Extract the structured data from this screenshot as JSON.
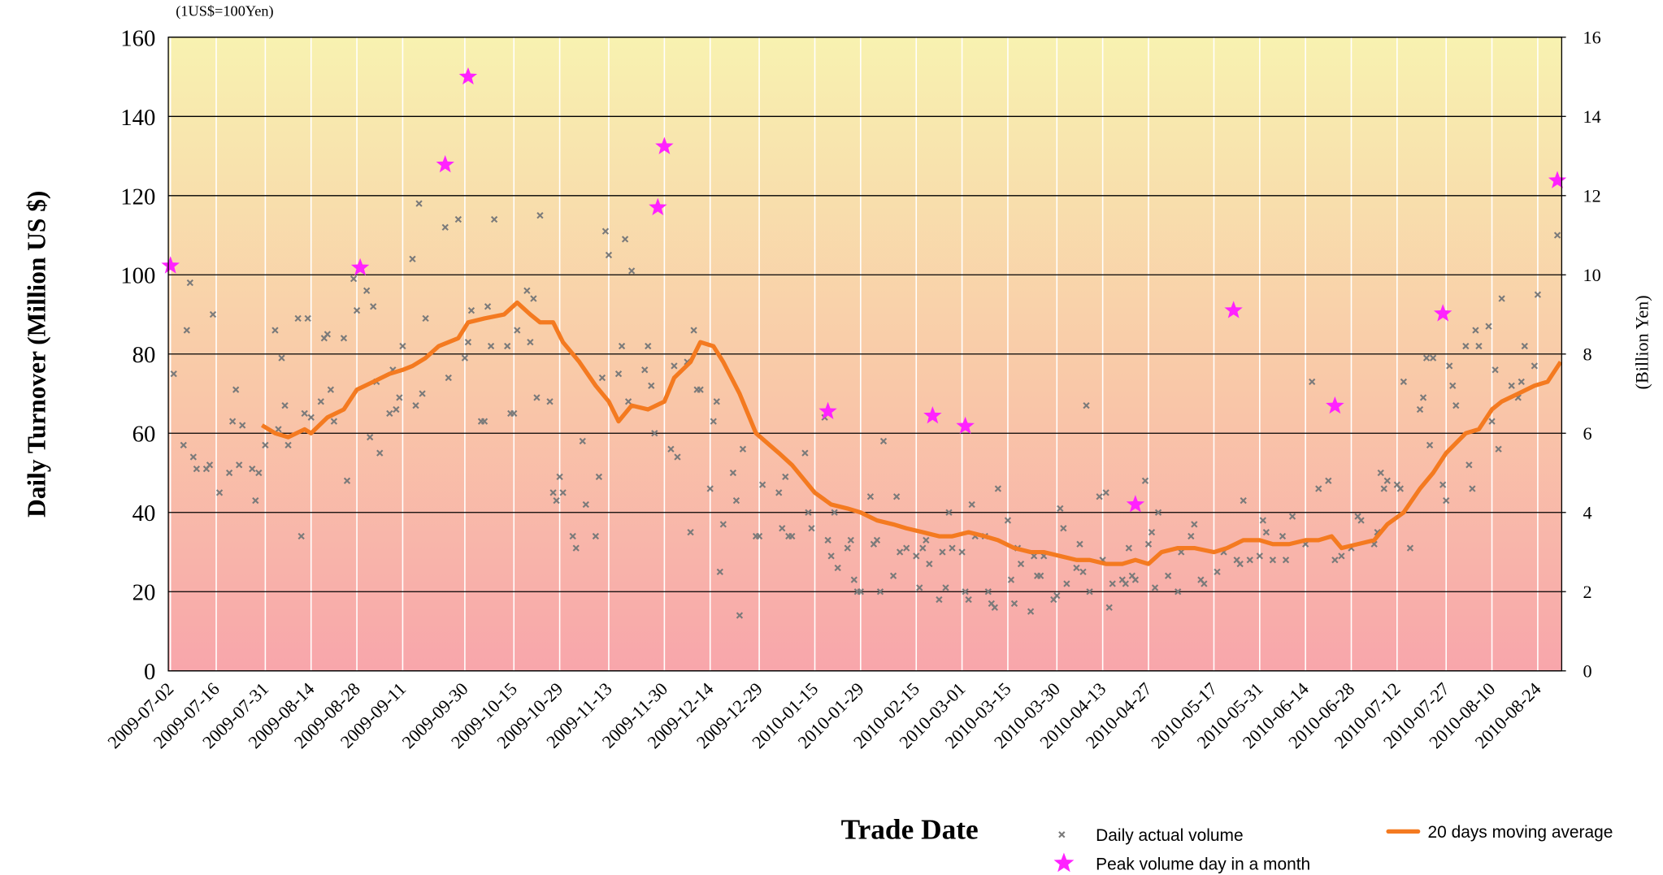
{
  "chart_data": {
    "type": "scatter",
    "subtitle": "(1US$=100Yen)",
    "y_label": "Daily Turnover (Million US $)",
    "y2_label": "(Billion Yen)",
    "x_label": "Trade Date",
    "xlim": [
      "2009-07-02",
      "2010-08-31"
    ],
    "xticks": [
      "2009-07-02",
      "2009-07-16",
      "2009-07-31",
      "2009-08-14",
      "2009-08-28",
      "2009-09-11",
      "2009-09-30",
      "2009-10-15",
      "2009-10-29",
      "2009-11-13",
      "2009-11-30",
      "2009-12-14",
      "2009-12-29",
      "2010-01-15",
      "2010-01-29",
      "2010-02-15",
      "2010-03-01",
      "2010-03-15",
      "2010-03-30",
      "2010-04-13",
      "2010-04-27",
      "2010-05-17",
      "2010-05-31",
      "2010-06-14",
      "2010-06-28",
      "2010-07-12",
      "2010-07-27",
      "2010-08-10",
      "2010-08-24"
    ],
    "ylim": [
      0,
      160
    ],
    "yticks": [
      0,
      20,
      40,
      60,
      80,
      100,
      120,
      140,
      160
    ],
    "y2lim": [
      0,
      16
    ],
    "y2ticks": [
      0,
      2,
      4,
      6,
      8,
      10,
      12,
      14,
      16
    ],
    "grid": true,
    "series": [
      {
        "name": "Daily actual volume",
        "type": "scatter",
        "marker": "x",
        "color": "#7a7a7a",
        "x": [
          "2009-07-03",
          "2009-07-06",
          "2009-07-07",
          "2009-07-08",
          "2009-07-09",
          "2009-07-10",
          "2009-07-13",
          "2009-07-14",
          "2009-07-15",
          "2009-07-17",
          "2009-07-20",
          "2009-07-21",
          "2009-07-22",
          "2009-07-23",
          "2009-07-24",
          "2009-07-27",
          "2009-07-28",
          "2009-07-29",
          "2009-07-31",
          "2009-08-03",
          "2009-08-04",
          "2009-08-05",
          "2009-08-06",
          "2009-08-07",
          "2009-08-10",
          "2009-08-11",
          "2009-08-12",
          "2009-08-13",
          "2009-08-14",
          "2009-08-17",
          "2009-08-18",
          "2009-08-19",
          "2009-08-20",
          "2009-08-21",
          "2009-08-24",
          "2009-08-25",
          "2009-08-27",
          "2009-08-28",
          "2009-08-31",
          "2009-09-01",
          "2009-09-02",
          "2009-09-03",
          "2009-09-04",
          "2009-09-07",
          "2009-09-08",
          "2009-09-09",
          "2009-09-10",
          "2009-09-11",
          "2009-09-14",
          "2009-09-15",
          "2009-09-16",
          "2009-09-17",
          "2009-09-18",
          "2009-09-24",
          "2009-09-25",
          "2009-09-28",
          "2009-09-30",
          "2009-10-01",
          "2009-10-02",
          "2009-10-05",
          "2009-10-06",
          "2009-10-07",
          "2009-10-08",
          "2009-10-09",
          "2009-10-13",
          "2009-10-14",
          "2009-10-15",
          "2009-10-16",
          "2009-10-19",
          "2009-10-20",
          "2009-10-21",
          "2009-10-22",
          "2009-10-23",
          "2009-10-26",
          "2009-10-27",
          "2009-10-28",
          "2009-10-29",
          "2009-10-30",
          "2009-11-02",
          "2009-11-03",
          "2009-11-05",
          "2009-11-06",
          "2009-11-09",
          "2009-11-10",
          "2009-11-11",
          "2009-11-12",
          "2009-11-13",
          "2009-11-16",
          "2009-11-17",
          "2009-11-18",
          "2009-11-19",
          "2009-11-20",
          "2009-11-24",
          "2009-11-25",
          "2009-11-26",
          "2009-11-27",
          "2009-12-02",
          "2009-12-03",
          "2009-12-04",
          "2009-12-07",
          "2009-12-08",
          "2009-12-09",
          "2009-12-10",
          "2009-12-11",
          "2009-12-14",
          "2009-12-15",
          "2009-12-16",
          "2009-12-17",
          "2009-12-18",
          "2009-12-21",
          "2009-12-22",
          "2009-12-23",
          "2009-12-24",
          "2009-12-28",
          "2009-12-29",
          "2009-12-30",
          "2010-01-04",
          "2010-01-05",
          "2010-01-06",
          "2010-01-07",
          "2010-01-08",
          "2010-01-12",
          "2010-01-13",
          "2010-01-14",
          "2010-01-18",
          "2010-01-19",
          "2010-01-20",
          "2010-01-21",
          "2010-01-22",
          "2010-01-25",
          "2010-01-26",
          "2010-01-27",
          "2010-01-28",
          "2010-01-29",
          "2010-02-01",
          "2010-02-02",
          "2010-02-03",
          "2010-02-04",
          "2010-02-05",
          "2010-02-08",
          "2010-02-09",
          "2010-02-10",
          "2010-02-12",
          "2010-02-15",
          "2010-02-16",
          "2010-02-17",
          "2010-02-18",
          "2010-02-19",
          "2010-02-22",
          "2010-02-23",
          "2010-02-24",
          "2010-02-25",
          "2010-02-26",
          "2010-03-01",
          "2010-03-02",
          "2010-03-03",
          "2010-03-04",
          "2010-03-05",
          "2010-03-08",
          "2010-03-09",
          "2010-03-10",
          "2010-03-11",
          "2010-03-12",
          "2010-03-15",
          "2010-03-16",
          "2010-03-17",
          "2010-03-18",
          "2010-03-19",
          "2010-03-22",
          "2010-03-23",
          "2010-03-24",
          "2010-03-25",
          "2010-03-26",
          "2010-03-29",
          "2010-03-30",
          "2010-03-31",
          "2010-04-01",
          "2010-04-02",
          "2010-04-05",
          "2010-04-06",
          "2010-04-07",
          "2010-04-08",
          "2010-04-09",
          "2010-04-12",
          "2010-04-13",
          "2010-04-14",
          "2010-04-15",
          "2010-04-16",
          "2010-04-19",
          "2010-04-20",
          "2010-04-21",
          "2010-04-22",
          "2010-04-23",
          "2010-04-26",
          "2010-04-27",
          "2010-04-28",
          "2010-04-29",
          "2010-04-30",
          "2010-05-03",
          "2010-05-06",
          "2010-05-07",
          "2010-05-10",
          "2010-05-11",
          "2010-05-13",
          "2010-05-14",
          "2010-05-18",
          "2010-05-20",
          "2010-05-24",
          "2010-05-25",
          "2010-05-26",
          "2010-05-28",
          "2010-05-31",
          "2010-06-01",
          "2010-06-02",
          "2010-06-04",
          "2010-06-07",
          "2010-06-08",
          "2010-06-10",
          "2010-06-14",
          "2010-06-16",
          "2010-06-18",
          "2010-06-21",
          "2010-06-23",
          "2010-06-25",
          "2010-06-28",
          "2010-06-30",
          "2010-07-01",
          "2010-07-05",
          "2010-07-06",
          "2010-07-07",
          "2010-07-08",
          "2010-07-09",
          "2010-07-12",
          "2010-07-13",
          "2010-07-14",
          "2010-07-16",
          "2010-07-19",
          "2010-07-20",
          "2010-07-21",
          "2010-07-22",
          "2010-07-23",
          "2010-07-26",
          "2010-07-27",
          "2010-07-28",
          "2010-07-29",
          "2010-07-30",
          "2010-08-02",
          "2010-08-03",
          "2010-08-04",
          "2010-08-05",
          "2010-08-06",
          "2010-08-09",
          "2010-08-10",
          "2010-08-11",
          "2010-08-12",
          "2010-08-13",
          "2010-08-16",
          "2010-08-18",
          "2010-08-19",
          "2010-08-20",
          "2010-08-23",
          "2010-08-24",
          "2010-08-30"
        ],
        "values": [
          75,
          57,
          86,
          98,
          54,
          51,
          51,
          52,
          90,
          45,
          50,
          63,
          71,
          52,
          62,
          51,
          43,
          50,
          57,
          86,
          61,
          79,
          67,
          57,
          89,
          34,
          65,
          89,
          64,
          68,
          84,
          85,
          71,
          63,
          84,
          48,
          99,
          91,
          96,
          59,
          92,
          73,
          55,
          65,
          76,
          66,
          69,
          82,
          104,
          67,
          118,
          70,
          89,
          112,
          74,
          114,
          79,
          83,
          91,
          63,
          63,
          92,
          82,
          114,
          82,
          65,
          65,
          86,
          96,
          83,
          94,
          69,
          115,
          68,
          45,
          43,
          49,
          45,
          34,
          31,
          58,
          42,
          34,
          49,
          74,
          111,
          105,
          75,
          82,
          109,
          68,
          101,
          76,
          82,
          72,
          60,
          56,
          77,
          54,
          78,
          35,
          86,
          71,
          71,
          46,
          63,
          68,
          25,
          37,
          50,
          43,
          14,
          56,
          34,
          34,
          47,
          45,
          36,
          49,
          34,
          34,
          55,
          40,
          36,
          64,
          33,
          29,
          40,
          26,
          31,
          33,
          23,
          20,
          20,
          44,
          32,
          33,
          20,
          58,
          24,
          44,
          30,
          31,
          29,
          21,
          31,
          33,
          27,
          18,
          30,
          21,
          40,
          31,
          30,
          20,
          18,
          42,
          34,
          34,
          20,
          17,
          16,
          46,
          38,
          23,
          17,
          31,
          27,
          15,
          29,
          24,
          24,
          29,
          18,
          19,
          41,
          36,
          22,
          26,
          32,
          25,
          67,
          20,
          44,
          28,
          45,
          16,
          22,
          23,
          22,
          31,
          24,
          23,
          48,
          32,
          35,
          21,
          40,
          24,
          20,
          30,
          34,
          37,
          23,
          22,
          25,
          30,
          28,
          27,
          43,
          28,
          29,
          38,
          35,
          28,
          34,
          28,
          39,
          32,
          73,
          46,
          48,
          28,
          29,
          31,
          39,
          38,
          32,
          35,
          50,
          46,
          48,
          47,
          46,
          73,
          31,
          66,
          69,
          79,
          57,
          79,
          47,
          43,
          77,
          72,
          67,
          82,
          52,
          46,
          86,
          82,
          87,
          63,
          76,
          56,
          94,
          72,
          69,
          73,
          82,
          77,
          95,
          110
        ]
      },
      {
        "name": "Peak volume day in a month",
        "type": "scatter",
        "marker": "star",
        "color": "#ff22ff",
        "x": [
          "2009-07-02",
          "2009-08-29",
          "2009-09-24",
          "2009-10-01",
          "2009-11-28",
          "2009-11-30",
          "2010-01-19",
          "2010-02-20",
          "2010-03-02",
          "2010-04-23",
          "2010-05-23",
          "2010-06-23",
          "2010-07-26",
          "2010-08-30"
        ],
        "values": [
          102.3,
          101.8,
          127.8,
          150,
          117,
          132.4,
          65.5,
          64.4,
          61.8,
          42,
          91,
          66.9,
          90.2,
          123.8
        ]
      },
      {
        "name": "20 days moving average",
        "type": "line",
        "color": "#f47a20",
        "x": [
          "2009-07-30",
          "2009-08-03",
          "2009-08-07",
          "2009-08-12",
          "2009-08-14",
          "2009-08-19",
          "2009-08-24",
          "2009-08-28",
          "2009-09-02",
          "2009-09-07",
          "2009-09-11",
          "2009-09-14",
          "2009-09-18",
          "2009-09-22",
          "2009-09-28",
          "2009-10-01",
          "2009-10-06",
          "2009-10-12",
          "2009-10-16",
          "2009-10-20",
          "2009-10-23",
          "2009-10-27",
          "2009-10-30",
          "2009-11-04",
          "2009-11-09",
          "2009-11-13",
          "2009-11-16",
          "2009-11-20",
          "2009-11-25",
          "2009-11-30",
          "2009-12-03",
          "2009-12-08",
          "2009-12-11",
          "2009-12-15",
          "2009-12-18",
          "2009-12-23",
          "2009-12-28",
          "2010-01-04",
          "2010-01-08",
          "2010-01-12",
          "2010-01-15",
          "2010-01-20",
          "2010-01-25",
          "2010-01-29",
          "2010-02-03",
          "2010-02-08",
          "2010-02-12",
          "2010-02-17",
          "2010-02-22",
          "2010-02-26",
          "2010-03-03",
          "2010-03-08",
          "2010-03-12",
          "2010-03-17",
          "2010-03-22",
          "2010-03-26",
          "2010-03-31",
          "2010-04-05",
          "2010-04-09",
          "2010-04-14",
          "2010-04-19",
          "2010-04-23",
          "2010-04-27",
          "2010-05-01",
          "2010-05-06",
          "2010-05-11",
          "2010-05-17",
          "2010-05-21",
          "2010-05-26",
          "2010-05-31",
          "2010-06-04",
          "2010-06-09",
          "2010-06-14",
          "2010-06-18",
          "2010-06-22",
          "2010-06-25",
          "2010-06-30",
          "2010-07-05",
          "2010-07-09",
          "2010-07-14",
          "2010-07-19",
          "2010-07-23",
          "2010-07-27",
          "2010-08-02",
          "2010-08-06",
          "2010-08-10",
          "2010-08-13",
          "2010-08-18",
          "2010-08-23",
          "2010-08-27",
          "2010-08-31"
        ],
        "values": [
          62,
          60,
          59,
          61,
          60,
          64,
          66,
          71,
          73,
          75,
          76,
          77,
          79,
          82,
          84,
          88,
          89,
          90,
          93,
          90,
          88,
          88,
          83,
          78,
          72,
          68,
          63,
          67,
          66,
          68,
          74,
          78,
          83,
          82,
          78,
          70,
          60,
          55,
          52,
          48,
          45,
          42,
          41,
          40,
          38,
          37,
          36,
          35,
          34,
          34,
          35,
          34,
          33,
          31,
          30,
          30,
          29,
          28,
          28,
          27,
          27,
          28,
          27,
          30,
          31,
          31,
          30,
          31,
          33,
          33,
          32,
          32,
          33,
          33,
          34,
          31,
          32,
          33,
          37,
          40,
          46,
          50,
          55,
          60,
          61,
          66,
          68,
          70,
          72,
          73,
          78
        ]
      }
    ]
  }
}
